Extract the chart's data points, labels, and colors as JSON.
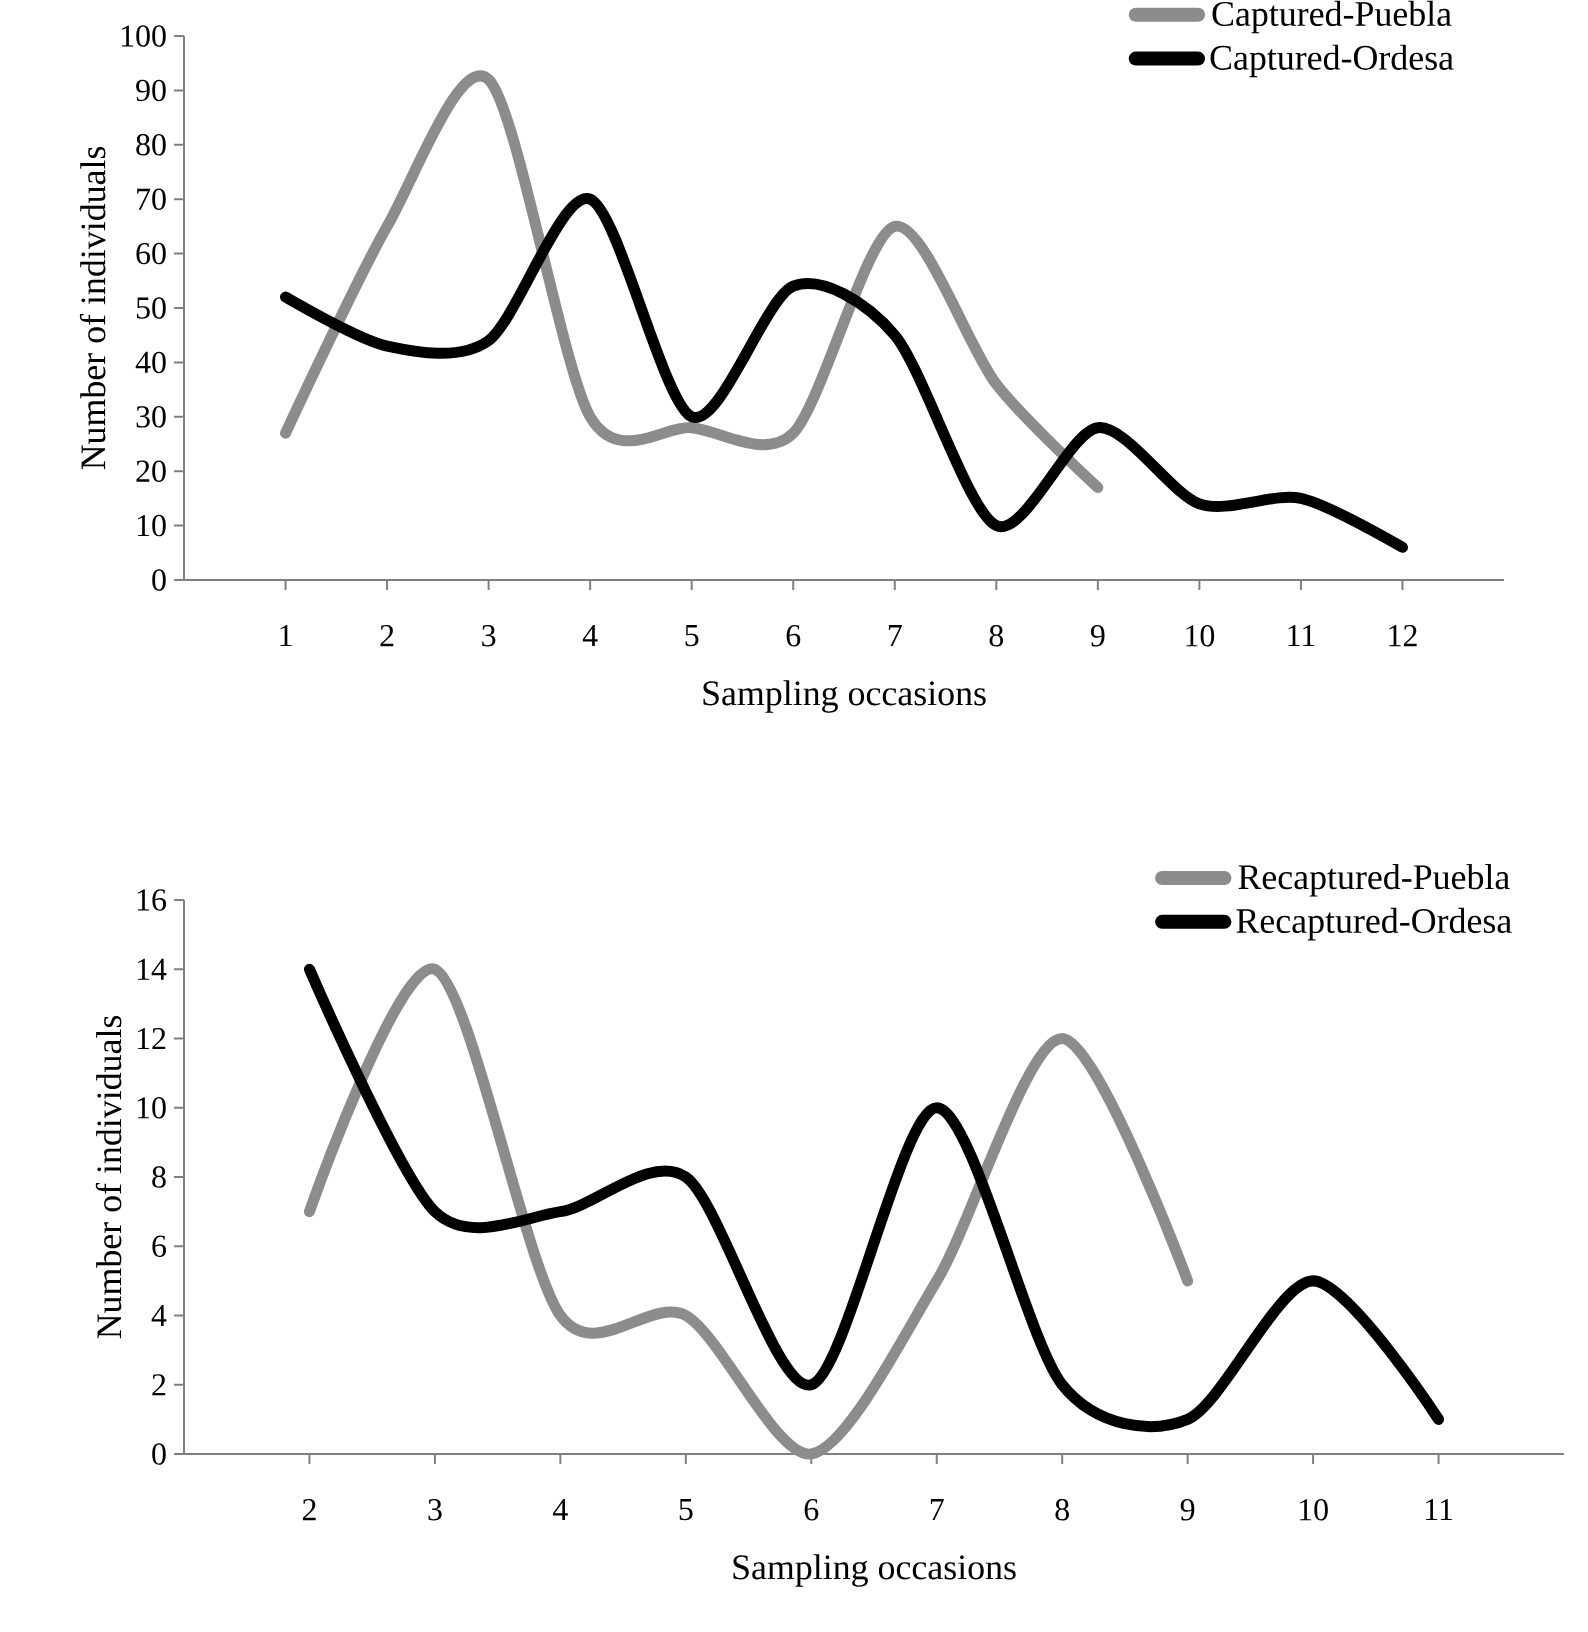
{
  "chart_data": [
    {
      "type": "line",
      "xlabel": "Sampling occasions",
      "ylabel": "Number of individuals",
      "categories": [
        "1",
        "2",
        "3",
        "4",
        "5",
        "6",
        "7",
        "8",
        "9",
        "10",
        "11",
        "12"
      ],
      "series": [
        {
          "name": "Captured-Puebla",
          "color": "#8c8c8c",
          "values": [
            27,
            65,
            92,
            30,
            28,
            27,
            65,
            36,
            17,
            null,
            null,
            null
          ]
        },
        {
          "name": "Captured-Ordesa",
          "color": "#000000",
          "values": [
            52,
            43,
            44,
            70,
            30,
            54,
            45,
            10,
            28,
            14,
            15,
            6
          ]
        }
      ],
      "ylim": [
        0,
        100
      ],
      "yticks": [
        0,
        10,
        20,
        30,
        40,
        50,
        60,
        70,
        80,
        90,
        100
      ],
      "legend": "top right",
      "marker": "none"
    },
    {
      "type": "line",
      "xlabel": "Sampling occasions",
      "ylabel": "Number of individuals",
      "categories": [
        "2",
        "3",
        "4",
        "5",
        "6",
        "7",
        "8",
        "9",
        "10",
        "11"
      ],
      "series": [
        {
          "name": "Recaptured-Puebla",
          "color": "#8c8c8c",
          "values": [
            7,
            14,
            4,
            4,
            0,
            5,
            12,
            5,
            null,
            null
          ]
        },
        {
          "name": "Recaptured-Ordesa",
          "color": "#000000",
          "values": [
            14,
            7,
            7,
            8,
            2,
            10,
            2,
            1,
            5,
            1
          ]
        }
      ],
      "ylim": [
        0,
        16
      ],
      "yticks": [
        0,
        2,
        4,
        6,
        8,
        10,
        12,
        14,
        16
      ],
      "legend": "top right",
      "marker": "none"
    }
  ]
}
